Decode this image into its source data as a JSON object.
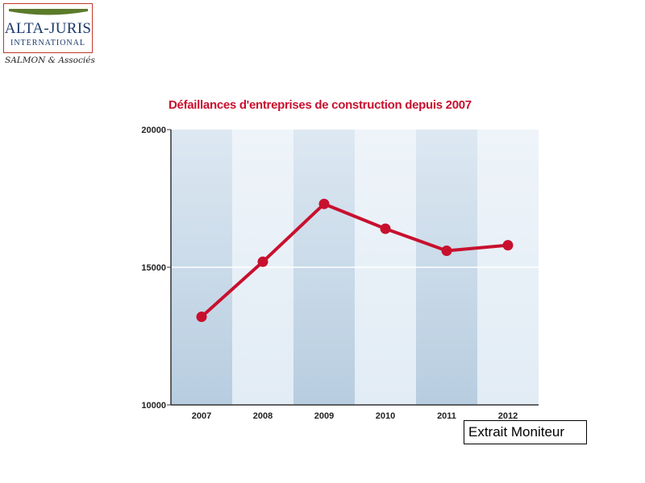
{
  "logo": {
    "name": "ALTA-JURIS",
    "subtitle": "INTERNATIONAL",
    "firm": "SALMON & Associés",
    "colors": {
      "border": "#c0392b",
      "bar": "#5b7a2a",
      "text": "#1a3a6b"
    }
  },
  "source_label": "Extrait Moniteur",
  "chart_data": {
    "type": "line",
    "title": "Défaillances d'entreprises de construction depuis 2007",
    "xlabel": "",
    "ylabel": "",
    "categories": [
      "2007",
      "2008",
      "2009",
      "2010",
      "2011",
      "2012"
    ],
    "series": [
      {
        "values": [
          13200,
          15200,
          17300,
          16400,
          15600,
          15800
        ]
      }
    ],
    "ylim": [
      10000,
      20000
    ],
    "yticks": [
      10000,
      15000,
      20000
    ],
    "ytick_labels": [
      "10000",
      "15000",
      "20000"
    ],
    "grid": false,
    "legend": "none",
    "colors": {
      "line": "#c8102e",
      "title": "#c8102e",
      "band_dark": "#b7cde0",
      "band_light": "#e2ecf5"
    }
  }
}
